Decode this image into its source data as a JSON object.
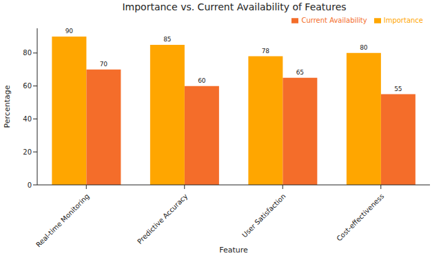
{
  "chart_data": {
    "type": "bar",
    "title": "Importance vs. Current Availability of Features",
    "x_label": "Feature",
    "y_label": "Percentage",
    "categories": [
      "Real-time Monitoring",
      "Predictive Accuracy",
      "User Satisfaction",
      "Cost-effectiveness"
    ],
    "series": [
      {
        "name": "Importance",
        "color": "#ffa600",
        "values": [
          90,
          85,
          78,
          80
        ]
      },
      {
        "name": "Current Availability",
        "color": "#f46d2a",
        "values": [
          70,
          60,
          65,
          55
        ]
      }
    ],
    "ylim": [
      0,
      95
    ],
    "yticks": [
      0,
      20,
      40,
      60,
      80
    ],
    "grid": false,
    "legend": "upper right",
    "data_labels": true
  }
}
